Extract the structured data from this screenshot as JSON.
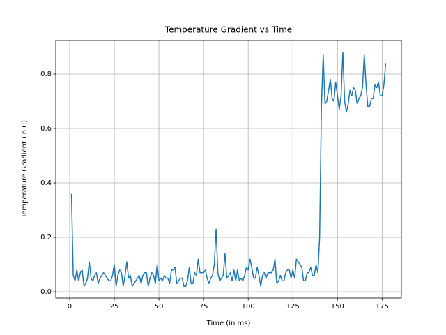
{
  "chart_data": {
    "type": "line",
    "title": "Temperature Gradient vs Time",
    "xlabel": "Time (in ms)",
    "ylabel": "Temperature Gradient (in C)",
    "x": [
      1,
      2,
      3,
      4,
      5,
      6,
      7,
      8,
      9,
      10,
      11,
      12,
      13,
      14,
      15,
      16,
      17,
      18,
      19,
      20,
      21,
      22,
      23,
      24,
      25,
      26,
      27,
      28,
      29,
      30,
      31,
      32,
      33,
      34,
      35,
      36,
      37,
      38,
      39,
      40,
      41,
      42,
      43,
      44,
      45,
      46,
      47,
      48,
      49,
      50,
      51,
      52,
      53,
      54,
      55,
      56,
      57,
      58,
      59,
      60,
      61,
      62,
      63,
      64,
      65,
      66,
      67,
      68,
      69,
      70,
      71,
      72,
      73,
      74,
      75,
      76,
      77,
      78,
      79,
      80,
      81,
      82,
      83,
      84,
      85,
      86,
      87,
      88,
      89,
      90,
      91,
      92,
      93,
      94,
      95,
      96,
      97,
      98,
      99,
      100,
      101,
      102,
      103,
      104,
      105,
      106,
      107,
      108,
      109,
      110,
      111,
      112,
      113,
      114,
      115,
      116,
      117,
      118,
      119,
      120,
      121,
      122,
      123,
      124,
      125,
      126,
      127,
      128,
      129,
      130,
      131,
      132,
      133,
      134,
      135,
      136,
      137,
      138,
      139,
      140,
      141,
      142,
      143,
      144,
      145,
      146,
      147,
      148,
      149,
      150,
      151,
      152,
      153,
      154,
      155,
      156,
      157,
      158,
      159,
      160,
      161,
      162,
      163,
      164,
      165,
      166,
      167,
      168,
      169,
      170,
      171,
      172,
      173,
      174,
      175,
      176,
      177
    ],
    "series": [
      {
        "name": "Temperature Gradient",
        "color": "#1f77b4",
        "values": [
          0.36,
          0.06,
          0.04,
          0.08,
          0.04,
          0.07,
          0.08,
          0.02,
          0.03,
          0.05,
          0.11,
          0.05,
          0.04,
          0.06,
          0.07,
          0.03,
          0.05,
          0.06,
          0.07,
          0.06,
          0.05,
          0.04,
          0.04,
          0.06,
          0.1,
          0.02,
          0.06,
          0.08,
          0.07,
          0.02,
          0.06,
          0.11,
          0.05,
          0.06,
          0.02,
          0.03,
          0.04,
          0.05,
          0.06,
          0.03,
          0.06,
          0.07,
          0.07,
          0.02,
          0.05,
          0.07,
          0.06,
          0.03,
          0.1,
          0.04,
          0.05,
          0.04,
          0.06,
          0.05,
          0.05,
          0.03,
          0.08,
          0.08,
          0.09,
          0.03,
          0.04,
          0.05,
          0.05,
          0.02,
          0.02,
          0.04,
          0.09,
          0.03,
          0.03,
          0.07,
          0.06,
          0.12,
          0.07,
          0.07,
          0.07,
          0.08,
          0.05,
          0.03,
          0.05,
          0.06,
          0.1,
          0.23,
          0.07,
          0.04,
          0.05,
          0.06,
          0.14,
          0.05,
          0.06,
          0.07,
          0.04,
          0.08,
          0.04,
          0.08,
          0.04,
          0.05,
          0.04,
          0.06,
          0.09,
          0.08,
          0.12,
          0.09,
          0.05,
          0.05,
          0.09,
          0.06,
          0.02,
          0.06,
          0.07,
          0.05,
          0.07,
          0.07,
          0.07,
          0.08,
          0.12,
          0.03,
          0.04,
          0.06,
          0.04,
          0.04,
          0.07,
          0.08,
          0.08,
          0.05,
          0.08,
          0.05,
          0.12,
          0.11,
          0.1,
          0.09,
          0.04,
          0.04,
          0.07,
          0.07,
          0.09,
          0.06,
          0.06,
          0.1,
          0.07,
          0.2,
          0.68,
          0.87,
          0.69,
          0.7,
          0.74,
          0.78,
          0.71,
          0.7,
          0.77,
          0.72,
          0.67,
          0.72,
          0.88,
          0.7,
          0.66,
          0.69,
          0.74,
          0.72,
          0.75,
          0.74,
          0.69,
          0.71,
          0.72,
          0.75,
          0.87,
          0.76,
          0.68,
          0.68,
          0.71,
          0.71,
          0.76,
          0.75,
          0.77,
          0.72,
          0.72,
          0.76,
          0.84
        ]
      }
    ],
    "xlim": [
      -7.8,
      185.8
    ],
    "xticks": [
      0,
      25,
      50,
      75,
      100,
      125,
      150,
      175
    ],
    "ylim": [
      -0.023,
      0.923
    ],
    "yticks": [
      {
        "value": 0,
        "label": "0.0"
      },
      0.2,
      0.4,
      0.6,
      0.8
    ],
    "grid": true
  }
}
